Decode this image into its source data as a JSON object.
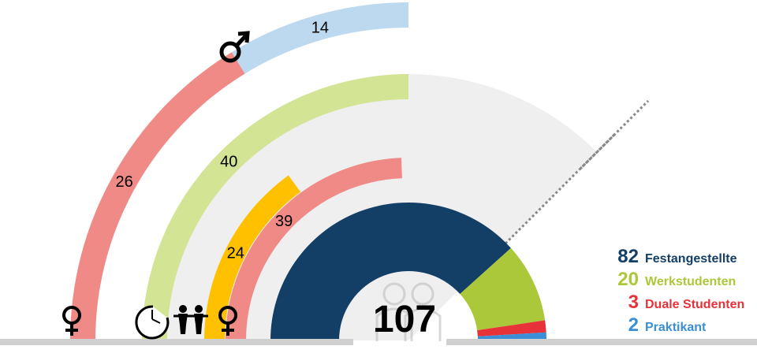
{
  "colors": {
    "female": "#f08a86",
    "male": "#bcd9f0",
    "parttime": "#d3e495",
    "children": "#ffc000",
    "festangestellte": "#133f66",
    "werkstudenten": "#aac83a",
    "duale_studenten": "#e8323a",
    "praktikant": "#3a8fd6",
    "background_arc": "#efefef",
    "baseline": "#d0d0d0",
    "label_text": "#000000"
  },
  "icons": {
    "male": "male-symbol-icon",
    "female_outer": "female-symbol-icon",
    "parttime": "clock-icon",
    "children": "children-icon",
    "female_inner": "female-symbol-icon",
    "center": "people-icon"
  },
  "center_total": "107",
  "chart_data": [
    {
      "type": "donut",
      "total": 107,
      "series": [
        {
          "name": "Festangestellte",
          "value": 82
        },
        {
          "name": "Werkstudenten",
          "value": 20
        },
        {
          "name": "Duale Studenten",
          "value": 3
        },
        {
          "name": "Praktikant",
          "value": 2
        }
      ]
    },
    {
      "type": "bar",
      "orientation": "radial",
      "categories": [
        "outer",
        "parttime",
        "children",
        "inner"
      ],
      "series": [
        {
          "values": [
            26,
            40,
            24,
            39
          ]
        },
        {
          "values": [
            14,
            null,
            null,
            null
          ]
        }
      ],
      "data_labels": [
        "26",
        "14",
        "40",
        "24",
        "39"
      ]
    }
  ],
  "legend": [
    {
      "value": "82",
      "label": "Festangestellte",
      "color": "#133f66"
    },
    {
      "value": "20",
      "label": "Werkstudenten",
      "color": "#aac83a"
    },
    {
      "value": "3",
      "label": "Duale Studenten",
      "color": "#e8323a"
    },
    {
      "value": "2",
      "label": "Praktikant",
      "color": "#3a8fd6"
    }
  ]
}
